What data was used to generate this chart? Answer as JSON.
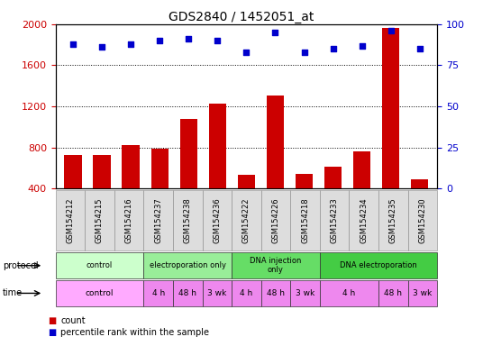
{
  "title": "GDS2840 / 1452051_at",
  "samples": [
    "GSM154212",
    "GSM154215",
    "GSM154216",
    "GSM154237",
    "GSM154238",
    "GSM154236",
    "GSM154222",
    "GSM154226",
    "GSM154218",
    "GSM154233",
    "GSM154234",
    "GSM154235",
    "GSM154230"
  ],
  "counts": [
    730,
    730,
    820,
    790,
    1080,
    1230,
    530,
    1310,
    540,
    610,
    760,
    1960,
    490
  ],
  "percentile": [
    88,
    86,
    88,
    90,
    91,
    90,
    83,
    95,
    83,
    85,
    87,
    96,
    85
  ],
  "bar_color": "#cc0000",
  "dot_color": "#0000cc",
  "ylim_left": [
    400,
    2000
  ],
  "ylim_right": [
    0,
    100
  ],
  "yticks_left": [
    400,
    800,
    1200,
    1600,
    2000
  ],
  "yticks_right": [
    0,
    25,
    50,
    75,
    100
  ],
  "grid_values": [
    800,
    1200,
    1600
  ],
  "bar_width": 0.6,
  "bg_color": "#ffffff",
  "ax_bg_color": "#ffffff",
  "proto_groups": [
    {
      "label": "control",
      "cols": [
        0,
        1,
        2
      ],
      "color": "#ccffcc"
    },
    {
      "label": "electroporation only",
      "cols": [
        3,
        4,
        5
      ],
      "color": "#99ee99"
    },
    {
      "label": "DNA injection\nonly",
      "cols": [
        6,
        7,
        8
      ],
      "color": "#66dd66"
    },
    {
      "label": "DNA electroporation",
      "cols": [
        9,
        10,
        11,
        12
      ],
      "color": "#44cc44"
    }
  ],
  "time_groups": [
    {
      "label": "control",
      "cols": [
        0,
        1,
        2
      ],
      "color": "#ffaaff"
    },
    {
      "label": "4 h",
      "cols": [
        3
      ],
      "color": "#ee88ee"
    },
    {
      "label": "48 h",
      "cols": [
        4
      ],
      "color": "#ee88ee"
    },
    {
      "label": "3 wk",
      "cols": [
        5
      ],
      "color": "#ee88ee"
    },
    {
      "label": "4 h",
      "cols": [
        6
      ],
      "color": "#ee88ee"
    },
    {
      "label": "48 h",
      "cols": [
        7
      ],
      "color": "#ee88ee"
    },
    {
      "label": "3 wk",
      "cols": [
        8
      ],
      "color": "#ee88ee"
    },
    {
      "label": "4 h",
      "cols": [
        9,
        10
      ],
      "color": "#ee88ee"
    },
    {
      "label": "48 h",
      "cols": [
        11
      ],
      "color": "#ee88ee"
    },
    {
      "label": "3 wk",
      "cols": [
        12
      ],
      "color": "#ee88ee"
    }
  ],
  "title_fontsize": 10,
  "tick_fontsize": 8,
  "sample_fontsize": 6,
  "label_fontsize": 7,
  "legend_fontsize": 7
}
